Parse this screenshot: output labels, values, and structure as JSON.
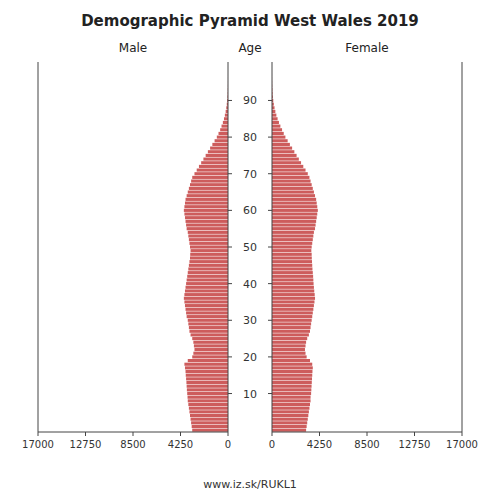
{
  "chart_data": {
    "type": "bar",
    "orientation": "horizontal",
    "title": "Demographic Pyramid West Wales 2019",
    "y_label": "Age",
    "annotations": [
      "www.iz.sk/RUKL1"
    ],
    "y": [
      0,
      1,
      2,
      3,
      4,
      5,
      6,
      7,
      8,
      9,
      10,
      11,
      12,
      13,
      14,
      15,
      16,
      17,
      18,
      19,
      20,
      21,
      22,
      23,
      24,
      25,
      26,
      27,
      28,
      29,
      30,
      31,
      32,
      33,
      34,
      35,
      36,
      37,
      38,
      39,
      40,
      41,
      42,
      43,
      44,
      45,
      46,
      47,
      48,
      49,
      50,
      51,
      52,
      53,
      54,
      55,
      56,
      57,
      58,
      59,
      60,
      61,
      62,
      63,
      64,
      65,
      66,
      67,
      68,
      69,
      70,
      71,
      72,
      73,
      74,
      75,
      76,
      77,
      78,
      79,
      80,
      81,
      82,
      83,
      84,
      85,
      86,
      87,
      88,
      89,
      90,
      91,
      92,
      93,
      94,
      95,
      96,
      97,
      98,
      99,
      100
    ],
    "series": [
      {
        "name": "Male",
        "color": "#cd5c5c",
        "values": [
          3200,
          3250,
          3300,
          3350,
          3400,
          3450,
          3500,
          3550,
          3600,
          3620,
          3650,
          3680,
          3700,
          3720,
          3750,
          3780,
          3800,
          3850,
          3900,
          3600,
          3200,
          3100,
          3000,
          3050,
          3100,
          3200,
          3350,
          3450,
          3500,
          3550,
          3600,
          3700,
          3750,
          3800,
          3850,
          3900,
          3950,
          3900,
          3850,
          3800,
          3750,
          3700,
          3650,
          3600,
          3550,
          3500,
          3450,
          3400,
          3380,
          3350,
          3400,
          3450,
          3500,
          3550,
          3600,
          3700,
          3750,
          3800,
          3850,
          3900,
          3950,
          3900,
          3850,
          3800,
          3700,
          3600,
          3500,
          3400,
          3300,
          3200,
          3000,
          2800,
          2600,
          2400,
          2200,
          2000,
          1800,
          1600,
          1400,
          1200,
          1000,
          850,
          700,
          580,
          460,
          360,
          280,
          210,
          155,
          110,
          75,
          50,
          32,
          20,
          12,
          7,
          4,
          2,
          1,
          1,
          0
        ]
      },
      {
        "name": "Female",
        "color": "#cd5c5c",
        "values": [
          3050,
          3100,
          3150,
          3200,
          3250,
          3300,
          3350,
          3400,
          3450,
          3450,
          3500,
          3520,
          3540,
          3560,
          3580,
          3600,
          3620,
          3650,
          3600,
          3400,
          3100,
          3000,
          2950,
          3000,
          3050,
          3150,
          3300,
          3400,
          3450,
          3500,
          3550,
          3600,
          3650,
          3700,
          3750,
          3800,
          3850,
          3820,
          3780,
          3750,
          3720,
          3700,
          3680,
          3650,
          3620,
          3600,
          3580,
          3560,
          3550,
          3520,
          3550,
          3600,
          3650,
          3700,
          3750,
          3850,
          3900,
          3950,
          4000,
          4050,
          4100,
          4050,
          4000,
          3950,
          3850,
          3750,
          3650,
          3550,
          3450,
          3350,
          3200,
          3000,
          2800,
          2600,
          2400,
          2200,
          2000,
          1800,
          1600,
          1400,
          1200,
          1050,
          900,
          750,
          620,
          500,
          390,
          300,
          225,
          165,
          115,
          80,
          55,
          35,
          22,
          13,
          7,
          4,
          2,
          1,
          0
        ]
      }
    ],
    "xlim": [
      0,
      17000
    ],
    "xticks": [
      0,
      4250,
      8500,
      12750,
      17000
    ],
    "ylim": [
      -0.5,
      100.5
    ],
    "yticks": [
      10,
      20,
      30,
      40,
      50,
      60,
      70,
      80,
      90
    ],
    "grid": false
  }
}
